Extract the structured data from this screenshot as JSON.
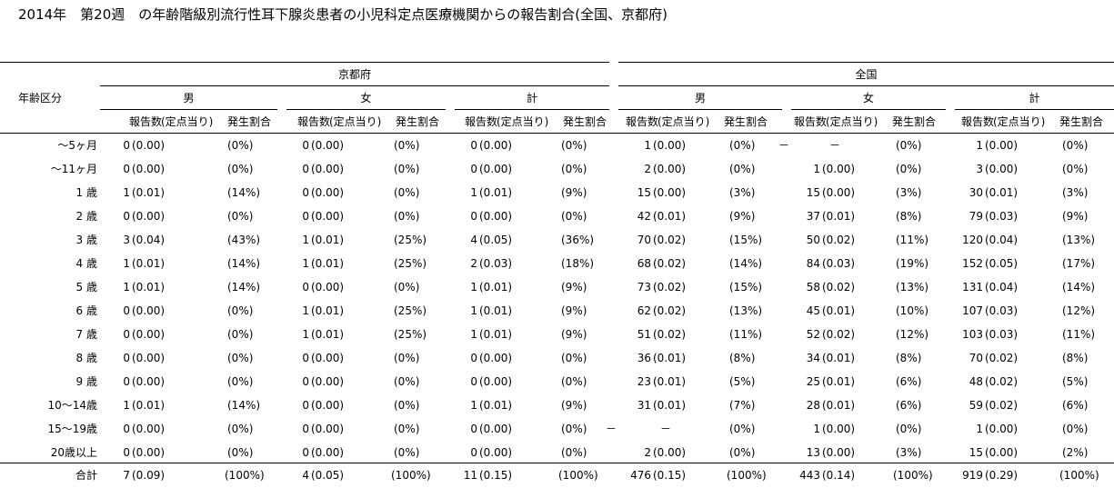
{
  "title": "2014年　第20週　の年齢階級別流行性耳下腺炎患者の小児科定点医療機関からの報告割合(全国、京都府)",
  "header": {
    "age_label": "年齢区分",
    "regions": [
      "京都府",
      "全国"
    ],
    "sexes": [
      "男",
      "女",
      "計"
    ],
    "col_count": "報告数",
    "col_per": "(定点当り)",
    "col_rate": "発生割合"
  },
  "rows": [
    {
      "label": "～5ヶ月",
      "cells": [
        [
          "0",
          "(0.00)",
          "(0%)"
        ],
        [
          "0",
          "(0.00)",
          "(0%)"
        ],
        [
          "0",
          "(0.00)",
          "(0%)"
        ],
        [
          "1",
          "(0.00)",
          "(0%)"
        ],
        [
          "－",
          "－",
          "(0%)"
        ],
        [
          "1",
          "(0.00)",
          "(0%)"
        ]
      ]
    },
    {
      "label": "～11ヶ月",
      "cells": [
        [
          "0",
          "(0.00)",
          "(0%)"
        ],
        [
          "0",
          "(0.00)",
          "(0%)"
        ],
        [
          "0",
          "(0.00)",
          "(0%)"
        ],
        [
          "2",
          "(0.00)",
          "(0%)"
        ],
        [
          "1",
          "(0.00)",
          "(0%)"
        ],
        [
          "3",
          "(0.00)",
          "(0%)"
        ]
      ]
    },
    {
      "label": "1 歳",
      "cells": [
        [
          "1",
          "(0.01)",
          "(14%)"
        ],
        [
          "0",
          "(0.00)",
          "(0%)"
        ],
        [
          "1",
          "(0.01)",
          "(9%)"
        ],
        [
          "15",
          "(0.00)",
          "(3%)"
        ],
        [
          "15",
          "(0.00)",
          "(3%)"
        ],
        [
          "30",
          "(0.01)",
          "(3%)"
        ]
      ]
    },
    {
      "label": "2 歳",
      "cells": [
        [
          "0",
          "(0.00)",
          "(0%)"
        ],
        [
          "0",
          "(0.00)",
          "(0%)"
        ],
        [
          "0",
          "(0.00)",
          "(0%)"
        ],
        [
          "42",
          "(0.01)",
          "(9%)"
        ],
        [
          "37",
          "(0.01)",
          "(8%)"
        ],
        [
          "79",
          "(0.03)",
          "(9%)"
        ]
      ]
    },
    {
      "label": "3 歳",
      "cells": [
        [
          "3",
          "(0.04)",
          "(43%)"
        ],
        [
          "1",
          "(0.01)",
          "(25%)"
        ],
        [
          "4",
          "(0.05)",
          "(36%)"
        ],
        [
          "70",
          "(0.02)",
          "(15%)"
        ],
        [
          "50",
          "(0.02)",
          "(11%)"
        ],
        [
          "120",
          "(0.04)",
          "(13%)"
        ]
      ]
    },
    {
      "label": "4 歳",
      "cells": [
        [
          "1",
          "(0.01)",
          "(14%)"
        ],
        [
          "1",
          "(0.01)",
          "(25%)"
        ],
        [
          "2",
          "(0.03)",
          "(18%)"
        ],
        [
          "68",
          "(0.02)",
          "(14%)"
        ],
        [
          "84",
          "(0.03)",
          "(19%)"
        ],
        [
          "152",
          "(0.05)",
          "(17%)"
        ]
      ]
    },
    {
      "label": "5 歳",
      "cells": [
        [
          "1",
          "(0.01)",
          "(14%)"
        ],
        [
          "0",
          "(0.00)",
          "(0%)"
        ],
        [
          "1",
          "(0.01)",
          "(9%)"
        ],
        [
          "73",
          "(0.02)",
          "(15%)"
        ],
        [
          "58",
          "(0.02)",
          "(13%)"
        ],
        [
          "131",
          "(0.04)",
          "(14%)"
        ]
      ]
    },
    {
      "label": "6 歳",
      "cells": [
        [
          "0",
          "(0.00)",
          "(0%)"
        ],
        [
          "1",
          "(0.01)",
          "(25%)"
        ],
        [
          "1",
          "(0.01)",
          "(9%)"
        ],
        [
          "62",
          "(0.02)",
          "(13%)"
        ],
        [
          "45",
          "(0.01)",
          "(10%)"
        ],
        [
          "107",
          "(0.03)",
          "(12%)"
        ]
      ]
    },
    {
      "label": "7 歳",
      "cells": [
        [
          "0",
          "(0.00)",
          "(0%)"
        ],
        [
          "1",
          "(0.01)",
          "(25%)"
        ],
        [
          "1",
          "(0.01)",
          "(9%)"
        ],
        [
          "51",
          "(0.02)",
          "(11%)"
        ],
        [
          "52",
          "(0.02)",
          "(12%)"
        ],
        [
          "103",
          "(0.03)",
          "(11%)"
        ]
      ]
    },
    {
      "label": "8 歳",
      "cells": [
        [
          "0",
          "(0.00)",
          "(0%)"
        ],
        [
          "0",
          "(0.00)",
          "(0%)"
        ],
        [
          "0",
          "(0.00)",
          "(0%)"
        ],
        [
          "36",
          "(0.01)",
          "(8%)"
        ],
        [
          "34",
          "(0.01)",
          "(8%)"
        ],
        [
          "70",
          "(0.02)",
          "(8%)"
        ]
      ]
    },
    {
      "label": "9 歳",
      "cells": [
        [
          "0",
          "(0.00)",
          "(0%)"
        ],
        [
          "0",
          "(0.00)",
          "(0%)"
        ],
        [
          "0",
          "(0.00)",
          "(0%)"
        ],
        [
          "23",
          "(0.01)",
          "(5%)"
        ],
        [
          "25",
          "(0.01)",
          "(6%)"
        ],
        [
          "48",
          "(0.02)",
          "(5%)"
        ]
      ]
    },
    {
      "label": "10～14歳",
      "cells": [
        [
          "1",
          "(0.01)",
          "(14%)"
        ],
        [
          "0",
          "(0.00)",
          "(0%)"
        ],
        [
          "1",
          "(0.01)",
          "(9%)"
        ],
        [
          "31",
          "(0.01)",
          "(7%)"
        ],
        [
          "28",
          "(0.01)",
          "(6%)"
        ],
        [
          "59",
          "(0.02)",
          "(6%)"
        ]
      ]
    },
    {
      "label": "15～19歳",
      "cells": [
        [
          "0",
          "(0.00)",
          "(0%)"
        ],
        [
          "0",
          "(0.00)",
          "(0%)"
        ],
        [
          "0",
          "(0.00)",
          "(0%)"
        ],
        [
          "－",
          "－",
          "(0%)"
        ],
        [
          "1",
          "(0.00)",
          "(0%)"
        ],
        [
          "1",
          "(0.00)",
          "(0%)"
        ]
      ]
    },
    {
      "label": "20歳以上",
      "cells": [
        [
          "0",
          "(0.00)",
          "(0%)"
        ],
        [
          "0",
          "(0.00)",
          "(0%)"
        ],
        [
          "0",
          "(0.00)",
          "(0%)"
        ],
        [
          "2",
          "(0.00)",
          "(0%)"
        ],
        [
          "13",
          "(0.00)",
          "(3%)"
        ],
        [
          "15",
          "(0.00)",
          "(2%)"
        ]
      ]
    }
  ],
  "total": {
    "label": "合計",
    "cells": [
      [
        "7",
        "(0.09)",
        "(100%)"
      ],
      [
        "4",
        "(0.05)",
        "(100%)"
      ],
      [
        "11",
        "(0.15)",
        "(100%)"
      ],
      [
        "476",
        "(0.15)",
        "(100%)"
      ],
      [
        "443",
        "(0.14)",
        "(100%)"
      ],
      [
        "919",
        "(0.29)",
        "(100%)"
      ]
    ]
  }
}
